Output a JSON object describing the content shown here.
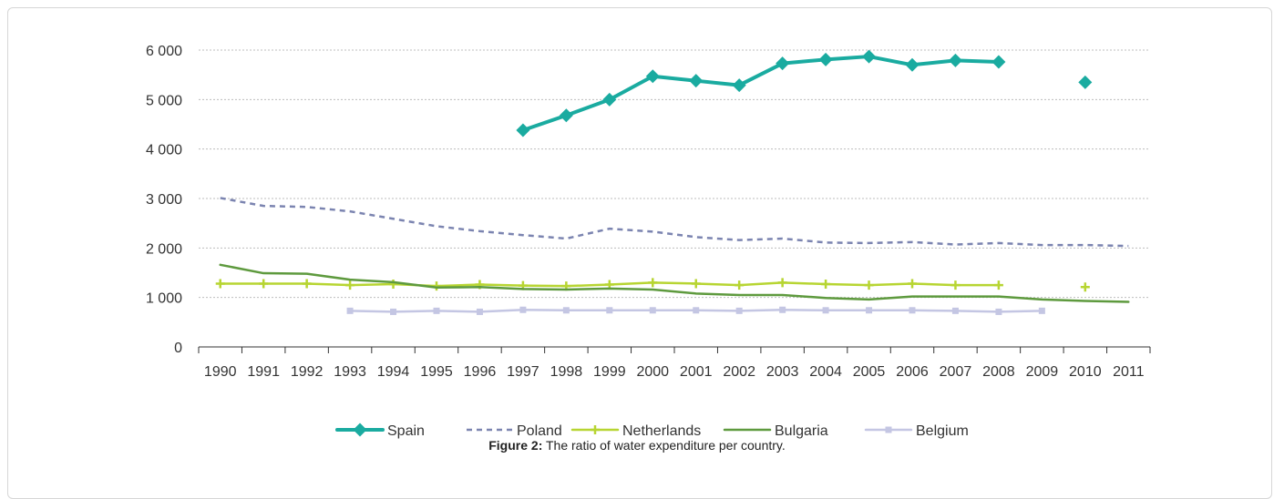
{
  "caption": {
    "label": "Figure 2:",
    "text": " The ratio of water expenditure per country."
  },
  "chart_data": {
    "type": "line",
    "categories": [
      "1990",
      "1991",
      "1992",
      "1993",
      "1994",
      "1995",
      "1996",
      "1997",
      "1998",
      "1999",
      "2000",
      "2001",
      "2002",
      "2003",
      "2004",
      "2005",
      "2006",
      "2007",
      "2008",
      "2009",
      "2010",
      "2011"
    ],
    "ylim": [
      0,
      6000
    ],
    "yticks": [
      0,
      1000,
      2000,
      3000,
      4000,
      5000,
      6000
    ],
    "ytick_labels": [
      "0",
      "1 000",
      "2 000",
      "3 000",
      "4 000",
      "5 000",
      "6 000"
    ],
    "grid": true,
    "legend_position": "bottom",
    "series": [
      {
        "name": "Spain",
        "color": "#1aaba0",
        "style": "solid-thick",
        "marker": "diamond",
        "values": [
          null,
          null,
          null,
          null,
          null,
          null,
          null,
          4380,
          4680,
          5000,
          5470,
          5380,
          5290,
          5730,
          5810,
          5870,
          5700,
          5790,
          5760,
          null,
          5350,
          null
        ]
      },
      {
        "name": "Poland",
        "color": "#7b84b0",
        "style": "dashed",
        "marker": "none",
        "values": [
          3010,
          2850,
          2830,
          2740,
          2590,
          2440,
          2340,
          2260,
          2190,
          2390,
          2330,
          2220,
          2160,
          2190,
          2110,
          2100,
          2120,
          2070,
          2100,
          2060,
          2060,
          2040
        ]
      },
      {
        "name": "Netherlands",
        "color": "#b7d532",
        "style": "solid",
        "marker": "plus",
        "values": [
          1280,
          1280,
          1280,
          1250,
          1270,
          1230,
          1260,
          1240,
          1230,
          1260,
          1300,
          1280,
          1250,
          1300,
          1270,
          1250,
          1280,
          1250,
          1250,
          null,
          1210,
          null
        ]
      },
      {
        "name": "Bulgaria",
        "color": "#5e9a3e",
        "style": "solid",
        "marker": "none",
        "values": [
          1660,
          1490,
          1480,
          1360,
          1310,
          1200,
          1210,
          1170,
          1160,
          1180,
          1160,
          1080,
          1050,
          1050,
          990,
          960,
          1020,
          1020,
          1020,
          960,
          930,
          910
        ]
      },
      {
        "name": "Belgium",
        "color": "#c4c6e3",
        "style": "solid",
        "marker": "square",
        "values": [
          null,
          null,
          null,
          730,
          710,
          730,
          710,
          750,
          740,
          740,
          740,
          740,
          730,
          750,
          740,
          740,
          740,
          730,
          710,
          730,
          null,
          null
        ]
      }
    ]
  }
}
